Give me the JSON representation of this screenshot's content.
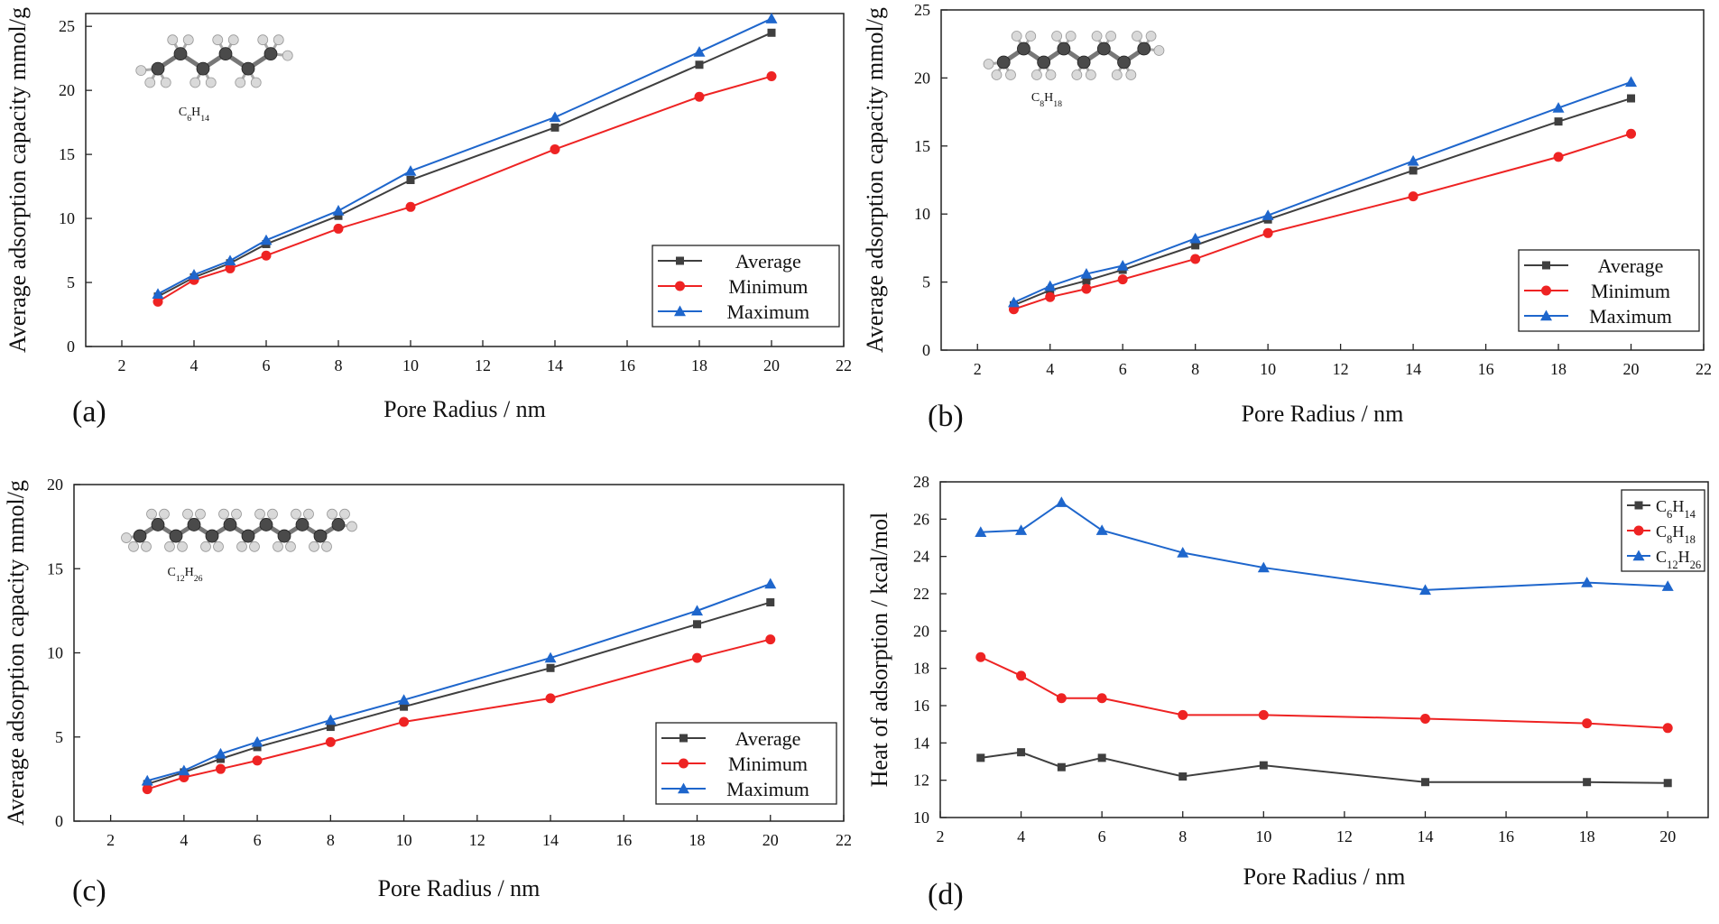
{
  "colors": {
    "average": "#3f3f3f",
    "minimum": "#ee2323",
    "maximum": "#1e66cc",
    "axis": "#222222",
    "molecule_carbon": "#4a4a4a",
    "molecule_hydrogen": "#d9d9d9"
  },
  "chart_data": [
    {
      "id": "a",
      "type": "line",
      "panel_label": "(a)",
      "molecule_label": {
        "main": "C",
        "sub1": "6",
        "mid": "H",
        "sub2": "14"
      },
      "molecule_carbons": 6,
      "xlabel": "Pore Radius / nm",
      "ylabel": "Average adsorption capacity mmol/g",
      "xlim": [
        1,
        22
      ],
      "ylim": [
        0,
        26
      ],
      "xticks": [
        2,
        4,
        6,
        8,
        10,
        12,
        14,
        16,
        18,
        20,
        22
      ],
      "yticks": [
        0,
        5,
        10,
        15,
        20,
        25
      ],
      "x": [
        3,
        4,
        5,
        6,
        8,
        10,
        14,
        18,
        20
      ],
      "legend_position": "bottom-right",
      "series": [
        {
          "name": "Average",
          "marker": "square",
          "color_key": "average",
          "values": [
            3.9,
            5.4,
            6.5,
            8.0,
            10.2,
            13.0,
            17.1,
            22.0,
            24.5
          ]
        },
        {
          "name": "Minimum",
          "marker": "circle",
          "color_key": "minimum",
          "values": [
            3.5,
            5.2,
            6.1,
            7.1,
            9.2,
            10.9,
            15.4,
            19.5,
            21.1
          ]
        },
        {
          "name": "Maximum",
          "marker": "triangle",
          "color_key": "maximum",
          "values": [
            4.1,
            5.6,
            6.7,
            8.3,
            10.6,
            13.7,
            17.9,
            23.0,
            25.6
          ]
        }
      ]
    },
    {
      "id": "b",
      "type": "line",
      "panel_label": "(b)",
      "molecule_label": {
        "main": "C",
        "sub1": "8",
        "mid": "H",
        "sub2": "18"
      },
      "molecule_carbons": 8,
      "xlabel": "Pore Radius / nm",
      "ylabel": "Average adsorption capacity mmol/g",
      "xlim": [
        1,
        22
      ],
      "ylim": [
        0,
        25
      ],
      "xticks": [
        2,
        4,
        6,
        8,
        10,
        12,
        14,
        16,
        18,
        20,
        22
      ],
      "yticks": [
        0,
        5,
        10,
        15,
        20,
        25
      ],
      "x": [
        3,
        4,
        5,
        6,
        8,
        10,
        14,
        18,
        20
      ],
      "legend_position": "bottom-right",
      "series": [
        {
          "name": "Average",
          "marker": "square",
          "color_key": "average",
          "values": [
            3.3,
            4.4,
            5.1,
            5.9,
            7.7,
            9.6,
            13.2,
            16.8,
            18.5
          ]
        },
        {
          "name": "Minimum",
          "marker": "circle",
          "color_key": "minimum",
          "values": [
            3.0,
            3.9,
            4.5,
            5.2,
            6.7,
            8.6,
            11.3,
            14.2,
            15.9
          ]
        },
        {
          "name": "Maximum",
          "marker": "triangle",
          "color_key": "maximum",
          "values": [
            3.5,
            4.7,
            5.6,
            6.2,
            8.2,
            9.9,
            13.9,
            17.8,
            19.7
          ]
        }
      ]
    },
    {
      "id": "c",
      "type": "line",
      "panel_label": "(c)",
      "molecule_label": {
        "main": "C",
        "sub1": "12",
        "mid": "H",
        "sub2": "26"
      },
      "molecule_carbons": 12,
      "xlabel": "Pore Radius / nm",
      "ylabel": "Average adsorption capacity mmol/g",
      "xlim": [
        1,
        22
      ],
      "ylim": [
        0,
        20
      ],
      "xticks": [
        2,
        4,
        6,
        8,
        10,
        12,
        14,
        16,
        18,
        20,
        22
      ],
      "yticks": [
        0,
        5,
        10,
        15,
        20
      ],
      "x": [
        3,
        4,
        5,
        6,
        8,
        10,
        14,
        18,
        20
      ],
      "legend_position": "bottom-right",
      "series": [
        {
          "name": "Average",
          "marker": "square",
          "color_key": "average",
          "values": [
            2.2,
            2.9,
            3.7,
            4.4,
            5.6,
            6.8,
            9.1,
            11.7,
            13.0
          ]
        },
        {
          "name": "Minimum",
          "marker": "circle",
          "color_key": "minimum",
          "values": [
            1.9,
            2.6,
            3.1,
            3.6,
            4.7,
            5.9,
            7.3,
            9.7,
            10.8
          ]
        },
        {
          "name": "Maximum",
          "marker": "triangle",
          "color_key": "maximum",
          "values": [
            2.4,
            3.0,
            4.0,
            4.7,
            6.0,
            7.2,
            9.7,
            12.5,
            14.1
          ]
        }
      ]
    },
    {
      "id": "d",
      "type": "line",
      "panel_label": "(d)",
      "xlabel": "Pore Radius / nm",
      "ylabel": "Heat of adsorption / kcal/mol",
      "xlim": [
        2,
        21
      ],
      "ylim": [
        10,
        28
      ],
      "xticks": [
        2,
        4,
        6,
        8,
        10,
        12,
        14,
        16,
        18,
        20
      ],
      "yticks": [
        10,
        12,
        14,
        16,
        18,
        20,
        22,
        24,
        26,
        28
      ],
      "x": [
        3,
        4,
        5,
        6,
        8,
        10,
        14,
        18,
        20
      ],
      "legend_position": "top-right",
      "series": [
        {
          "name": "C6H14",
          "label": {
            "main": "C",
            "sub1": "6",
            "mid": "H",
            "sub2": "14"
          },
          "marker": "square",
          "color_key": "average",
          "values": [
            13.2,
            13.5,
            12.7,
            13.2,
            12.2,
            12.8,
            11.9,
            11.9,
            11.85
          ]
        },
        {
          "name": "C8H18",
          "label": {
            "main": "C",
            "sub1": "8",
            "mid": "H",
            "sub2": "18"
          },
          "marker": "circle",
          "color_key": "minimum",
          "values": [
            18.6,
            17.6,
            16.4,
            16.4,
            15.5,
            15.5,
            15.3,
            15.05,
            14.8
          ]
        },
        {
          "name": "C12H26",
          "label": {
            "main": "C",
            "sub1": "12",
            "mid": "H",
            "sub2": "26"
          },
          "marker": "triangle",
          "color_key": "maximum",
          "values": [
            25.3,
            25.4,
            26.9,
            25.4,
            24.2,
            23.4,
            22.2,
            22.6,
            22.4
          ]
        }
      ]
    }
  ]
}
